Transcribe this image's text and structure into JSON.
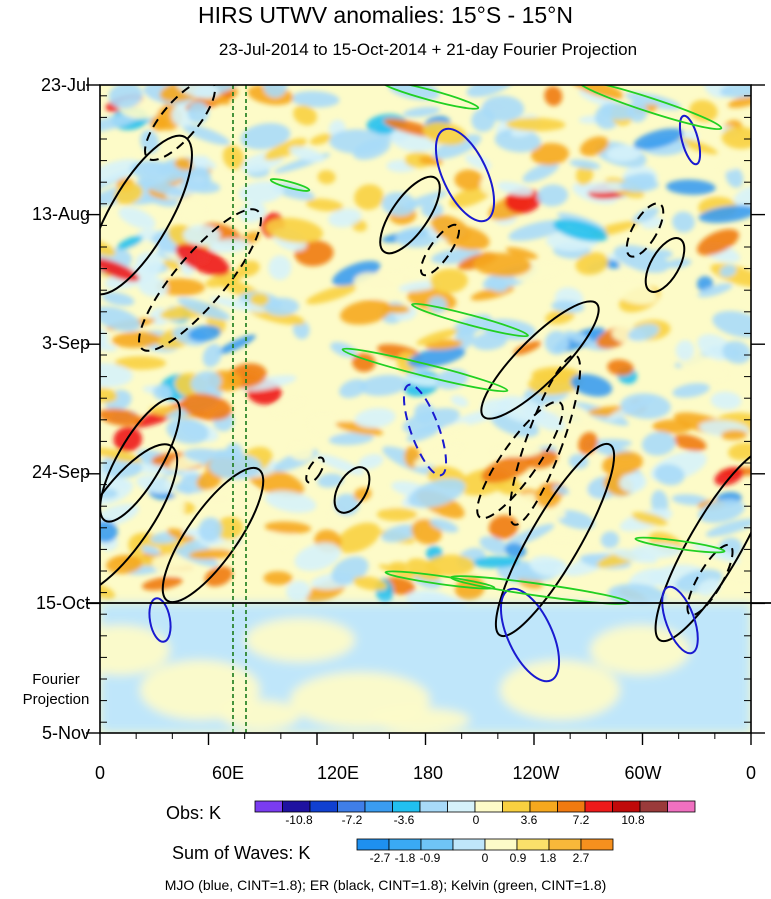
{
  "chart_data": {
    "type": "heatmap",
    "title": "HIRS UTWV anomalies: 15°S - 15°N",
    "subtitle": "23-Jul-2014 to 15-Oct-2014 + 21-day Fourier Projection",
    "y_ticks": [
      "23-Jul",
      "13-Aug",
      "3-Sep",
      "24-Sep",
      "15-Oct",
      "5-Nov"
    ],
    "x_ticks": [
      "0",
      "60E",
      "120E",
      "180",
      "120W",
      "60W",
      "0"
    ],
    "xlim": [
      0,
      360
    ],
    "projection_label": [
      "Fourier",
      "Projection"
    ],
    "projection_start": "15-Oct",
    "obs_colorbar": {
      "label": "Obs: K",
      "tick_labels": [
        "-10.8",
        "-7.2",
        "-3.6",
        "0",
        "3.6",
        "7.2",
        "10.8"
      ],
      "colors": [
        "#7a3cf0",
        "#1f12a0",
        "#1040d0",
        "#3f7ee8",
        "#3a9cf0",
        "#21c0f0",
        "#a8daf8",
        "#d6f2fa",
        "#fdfbc8",
        "#f8d040",
        "#f6a81e",
        "#f07a10",
        "#ee1a1a",
        "#c00a0a",
        "#9a3a3a",
        "#f070c0"
      ]
    },
    "waves_colorbar": {
      "label": "Sum of Waves: K",
      "tick_labels": [
        "-2.7",
        "-1.8",
        "-0.9",
        "0",
        "0.9",
        "1.8",
        "2.7"
      ],
      "colors": [
        "#1e90f0",
        "#3aaaf4",
        "#6fc4f6",
        "#bfe6fa",
        "#fdfbc8",
        "#fae06a",
        "#f8b83a",
        "#f6901e"
      ]
    },
    "legend_text": "MJO (blue, CINT=1.8); ER (black, CINT=1.8); Kelvin (green, CINT=1.8)",
    "contour_colors": {
      "MJO": "#1a1ad0",
      "ER": "#000000",
      "Kelvin": "#22d022"
    }
  }
}
